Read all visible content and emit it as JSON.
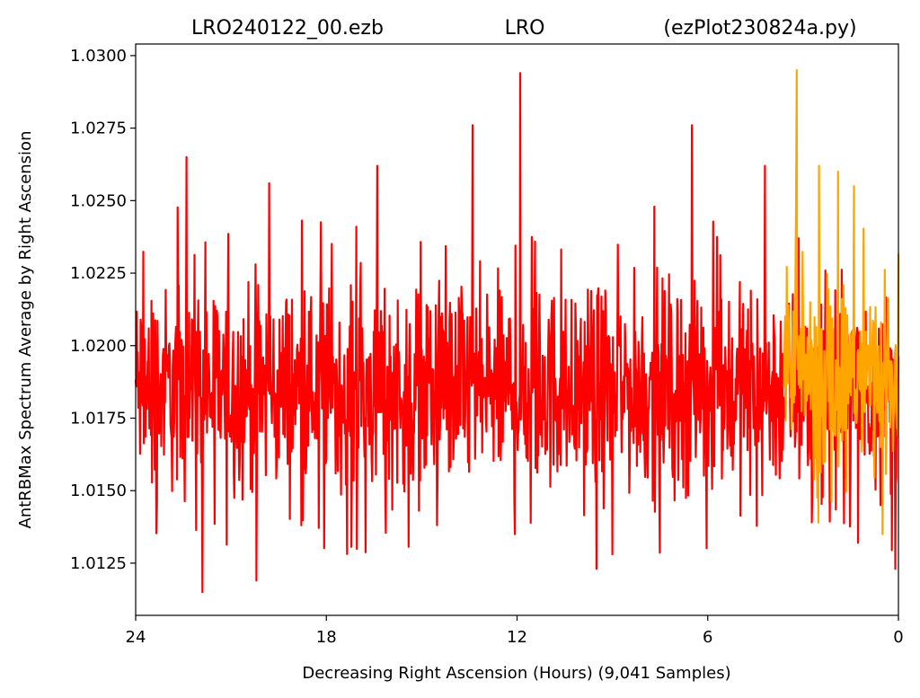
{
  "chart_data": {
    "type": "line",
    "title": {
      "left": "LRO240122_00.ezb",
      "center": "LRO",
      "right": "(ezPlot230824a.py)"
    },
    "xlabel": "Decreasing Right Ascension (Hours) (9,041 Samples)",
    "ylabel": "AntRBMax Spectrum Average by Right Ascension",
    "x_reversed": true,
    "xlim": [
      24,
      0
    ],
    "ylim": [
      1.0107,
      1.0304
    ],
    "xticks": [
      24,
      18,
      12,
      6,
      0
    ],
    "xtick_labels": [
      "24",
      "18",
      "12",
      "6",
      "0"
    ],
    "yticks": [
      1.0125,
      1.015,
      1.0175,
      1.02,
      1.0225,
      1.025,
      1.0275,
      1.03
    ],
    "ytick_labels": [
      "1.0125",
      "1.0150",
      "1.0175",
      "1.0200",
      "1.0225",
      "1.0250",
      "1.0275",
      "1.0300"
    ],
    "grid": false,
    "sample_count": 9041,
    "series": [
      {
        "color": "#ff0000",
        "x_range": [
          24,
          0
        ],
        "typical_band": [
          1.014,
          1.023
        ],
        "peaks": [
          {
            "x": 11.9,
            "y": 1.0294
          },
          {
            "x": 13.4,
            "y": 1.0276
          },
          {
            "x": 6.5,
            "y": 1.0276
          },
          {
            "x": 22.4,
            "y": 1.0265
          },
          {
            "x": 16.4,
            "y": 1.0262
          },
          {
            "x": 19.8,
            "y": 1.0256
          },
          {
            "x": 4.2,
            "y": 1.0262
          },
          {
            "x": 21.9,
            "y": 1.0115
          },
          {
            "x": 20.2,
            "y": 1.0119
          },
          {
            "x": 9.5,
            "y": 1.0123
          },
          {
            "x": 0.1,
            "y": 1.0123
          }
        ]
      },
      {
        "color": "#ffa500",
        "x_range": [
          3.6,
          0
        ],
        "typical_band": [
          1.015,
          1.023
        ],
        "peaks": [
          {
            "x": 3.2,
            "y": 1.0295
          },
          {
            "x": 2.5,
            "y": 1.0262
          },
          {
            "x": 1.9,
            "y": 1.026
          },
          {
            "x": 1.4,
            "y": 1.0255
          },
          {
            "x": 0.5,
            "y": 1.0135
          }
        ]
      }
    ]
  }
}
